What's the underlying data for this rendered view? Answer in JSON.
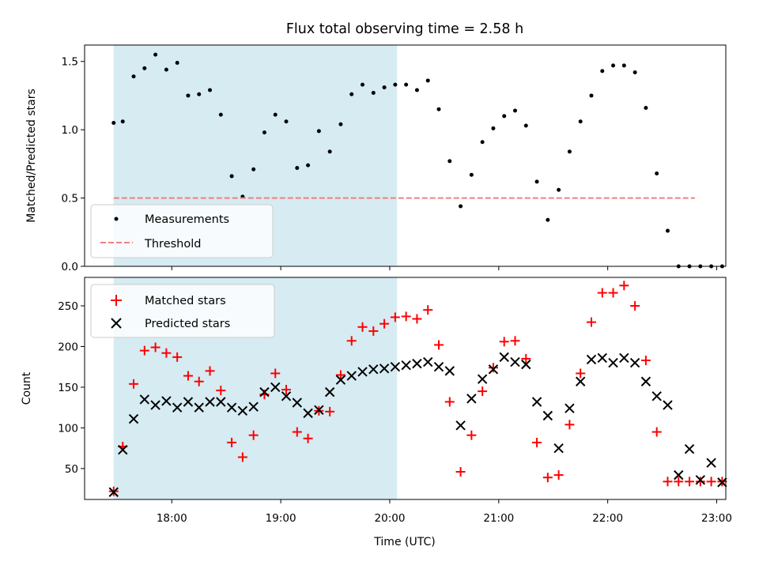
{
  "chart_data": [
    {
      "type": "scatter",
      "title": "Flux total observing time = 2.58 h",
      "xlabel": "",
      "ylabel": "Matched/Predicted stars",
      "xlim": [
        "17:12",
        "23:05"
      ],
      "ylim": [
        0,
        1.62
      ],
      "yticks": [
        0.0,
        0.5,
        1.0,
        1.5
      ],
      "ytick_labels": [
        "0.0",
        "0.5",
        "1.0",
        "1.5"
      ],
      "xticks": [
        "18:00",
        "19:00",
        "20:00",
        "21:00",
        "22:00",
        "23:00"
      ],
      "shaded_span": {
        "from": "17:28",
        "to": "20:04",
        "color": "#add8e6"
      },
      "legend": {
        "location": "lower left",
        "entries": [
          "Measurements",
          "Threshold"
        ]
      },
      "series": [
        {
          "name": "Measurements",
          "marker": "dot",
          "color": "#000000",
          "x": [
            "17:28",
            "17:33",
            "17:39",
            "17:45",
            "17:51",
            "17:57",
            "18:03",
            "18:09",
            "18:15",
            "18:21",
            "18:27",
            "18:33",
            "18:39",
            "18:45",
            "18:51",
            "18:57",
            "19:03",
            "19:09",
            "19:15",
            "19:21",
            "19:27",
            "19:33",
            "19:39",
            "19:45",
            "19:51",
            "19:57",
            "20:03",
            "20:09",
            "20:15",
            "20:21",
            "20:27",
            "20:33",
            "20:39",
            "20:45",
            "20:51",
            "20:57",
            "21:03",
            "21:09",
            "21:15",
            "21:21",
            "21:27",
            "21:33",
            "21:39",
            "21:45",
            "21:51",
            "21:57",
            "22:03",
            "22:09",
            "22:15",
            "22:21",
            "22:27",
            "22:33",
            "22:39",
            "22:45",
            "22:51",
            "22:57",
            "23:03"
          ],
          "y": [
            1.05,
            1.06,
            1.39,
            1.45,
            1.55,
            1.44,
            1.49,
            1.25,
            1.26,
            1.29,
            1.11,
            0.66,
            0.51,
            0.71,
            0.98,
            1.11,
            1.06,
            0.72,
            0.74,
            0.99,
            0.84,
            1.04,
            1.26,
            1.33,
            1.27,
            1.31,
            1.33,
            1.33,
            1.29,
            1.36,
            1.15,
            0.77,
            0.44,
            0.67,
            0.91,
            1.01,
            1.1,
            1.14,
            1.03,
            0.62,
            0.34,
            0.56,
            0.84,
            1.06,
            1.25,
            1.43,
            1.47,
            1.47,
            1.42,
            1.16,
            0.68,
            0.26,
            0.0,
            0.0,
            0.0,
            0.0,
            0.0
          ]
        },
        {
          "name": "Threshold",
          "line": "dashed",
          "color": "#f08080",
          "x": [
            "17:28",
            "22:48"
          ],
          "y": [
            0.5,
            0.5
          ]
        }
      ]
    },
    {
      "type": "scatter",
      "title": "",
      "xlabel": "Time (UTC)",
      "ylabel": "Count",
      "xlim": [
        "17:12",
        "23:05"
      ],
      "ylim": [
        12,
        285
      ],
      "yticks": [
        50,
        100,
        150,
        200,
        250
      ],
      "ytick_labels": [
        "50",
        "100",
        "150",
        "200",
        "250"
      ],
      "xticks": [
        "18:00",
        "19:00",
        "20:00",
        "21:00",
        "22:00",
        "23:00"
      ],
      "xtick_labels": [
        "18:00",
        "19:00",
        "20:00",
        "21:00",
        "22:00",
        "23:00"
      ],
      "shaded_span": {
        "from": "17:28",
        "to": "20:04",
        "color": "#add8e6"
      },
      "legend": {
        "location": "upper left",
        "entries": [
          "Matched stars",
          "Predicted stars"
        ]
      },
      "series": [
        {
          "name": "Matched stars",
          "marker": "plus",
          "color": "#ff0000",
          "x": [
            "17:28",
            "17:33",
            "17:39",
            "17:45",
            "17:51",
            "17:57",
            "18:03",
            "18:09",
            "18:15",
            "18:21",
            "18:27",
            "18:33",
            "18:39",
            "18:45",
            "18:51",
            "18:57",
            "19:03",
            "19:09",
            "19:15",
            "19:21",
            "19:27",
            "19:33",
            "19:39",
            "19:45",
            "19:51",
            "19:57",
            "20:03",
            "20:09",
            "20:15",
            "20:21",
            "20:27",
            "20:33",
            "20:39",
            "20:45",
            "20:51",
            "20:57",
            "21:03",
            "21:09",
            "21:15",
            "21:21",
            "21:27",
            "21:33",
            "21:39",
            "21:45",
            "21:51",
            "21:57",
            "22:03",
            "22:09",
            "22:15",
            "22:21",
            "22:27",
            "22:33",
            "22:39",
            "22:45",
            "22:51",
            "22:57",
            "23:03"
          ],
          "y": [
            22,
            77,
            154,
            195,
            199,
            192,
            187,
            164,
            157,
            170,
            146,
            82,
            64,
            91,
            141,
            167,
            147,
            95,
            87,
            121,
            120,
            165,
            207,
            224,
            219,
            228,
            236,
            237,
            234,
            245,
            202,
            132,
            46,
            91,
            145,
            174,
            206,
            207,
            185,
            82,
            39,
            42,
            104,
            167,
            230,
            266,
            266,
            275,
            250,
            183,
            95,
            34,
            34,
            34,
            34,
            34,
            34
          ]
        },
        {
          "name": "Predicted stars",
          "marker": "x",
          "color": "#000000",
          "x": [
            "17:28",
            "17:33",
            "17:39",
            "17:45",
            "17:51",
            "17:57",
            "18:03",
            "18:09",
            "18:15",
            "18:21",
            "18:27",
            "18:33",
            "18:39",
            "18:45",
            "18:51",
            "18:57",
            "19:03",
            "19:09",
            "19:15",
            "19:21",
            "19:27",
            "19:33",
            "19:39",
            "19:45",
            "19:51",
            "19:57",
            "20:03",
            "20:09",
            "20:15",
            "20:21",
            "20:27",
            "20:33",
            "20:39",
            "20:45",
            "20:51",
            "20:57",
            "21:03",
            "21:09",
            "21:15",
            "21:21",
            "21:27",
            "21:33",
            "21:39",
            "21:45",
            "21:51",
            "21:57",
            "22:03",
            "22:09",
            "22:15",
            "22:21",
            "22:27",
            "22:33",
            "22:39",
            "22:45",
            "22:51",
            "22:57",
            "23:03"
          ],
          "y": [
            21,
            73,
            111,
            135,
            128,
            133,
            125,
            132,
            125,
            132,
            132,
            125,
            121,
            126,
            144,
            150,
            139,
            131,
            118,
            122,
            144,
            159,
            164,
            169,
            172,
            173,
            175,
            177,
            179,
            181,
            175,
            170,
            103,
            136,
            160,
            172,
            187,
            181,
            178,
            132,
            115,
            75,
            124,
            157,
            184,
            186,
            180,
            186,
            180,
            157,
            139,
            128,
            42,
            74,
            36,
            57,
            33
          ]
        }
      ]
    }
  ]
}
